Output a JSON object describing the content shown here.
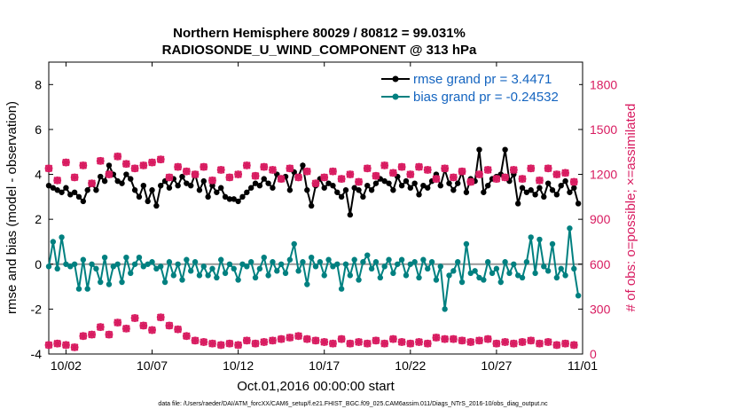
{
  "chart_data": {
    "type": "line",
    "title": "Northern Hemisphere 80029 / 80812 = 99.031%",
    "subtitle": "RADIOSONDE_U_WIND_COMPONENT @ 313 hPa",
    "xlabel": "Oct.01,2016 00:00:00 start",
    "ylabel": "rmse and bias (model - observation)",
    "y2label": "# of obs: o=possible; ×=assimilated",
    "footnote": "data file: /Users/raeder/DAI/ATM_forcXX/CAM6_setup/f.e21.FHIST_BGC.f09_025.CAM6assim.011/Diags_NTrS_2016-10/obs_diag_output.nc",
    "xlim": [
      0,
      31
    ],
    "ylim": [
      -4,
      9
    ],
    "y2lim": [
      0,
      1950
    ],
    "x_ticks": [
      1,
      6,
      11,
      16,
      21,
      26,
      31
    ],
    "x_tick_labels": [
      "10/02",
      "10/07",
      "10/12",
      "10/17",
      "10/22",
      "10/27",
      "11/01"
    ],
    "y_ticks": [
      -4,
      -2,
      0,
      2,
      4,
      6,
      8
    ],
    "y2_ticks": [
      0,
      300,
      600,
      900,
      1200,
      1500,
      1800
    ],
    "series": [
      {
        "name": "rmse grand pr = 3.4471",
        "color": "#000000",
        "axis": "left",
        "x_start": 0.0,
        "x_step": 0.25,
        "values": [
          3.5,
          3.4,
          3.3,
          3.2,
          3.4,
          3.1,
          3.2,
          3.0,
          2.8,
          3.3,
          3.6,
          3.3,
          3.9,
          3.7,
          4.4,
          4.0,
          3.7,
          3.6,
          4.0,
          3.8,
          3.3,
          3.0,
          3.5,
          2.8,
          3.3,
          2.6,
          3.5,
          3.7,
          3.4,
          3.8,
          3.5,
          3.9,
          3.6,
          3.5,
          4.0,
          3.3,
          3.7,
          3.0,
          3.5,
          3.2,
          3.4,
          3.0,
          2.9,
          2.9,
          2.8,
          3.0,
          3.2,
          3.4,
          3.6,
          3.5,
          3.8,
          3.6,
          3.4,
          4.0,
          3.8,
          3.9,
          3.3,
          4.1,
          3.9,
          4.4,
          3.3,
          2.6,
          3.5,
          3.8,
          3.4,
          3.6,
          3.5,
          3.2,
          3.0,
          3.3,
          2.2,
          3.4,
          3.3,
          3.0,
          3.5,
          3.3,
          3.6,
          3.8,
          3.7,
          3.6,
          3.3,
          3.9,
          3.5,
          3.7,
          3.4,
          3.6,
          3.1,
          3.5,
          3.4,
          3.7,
          4.0,
          3.5,
          4.2,
          3.6,
          3.3,
          3.6,
          4.1,
          3.2,
          3.8,
          3.7,
          5.1,
          3.2,
          3.5,
          3.8,
          3.9,
          4.0,
          5.1,
          3.7,
          4.0,
          2.7,
          3.4,
          3.2,
          3.3,
          3.1,
          3.4,
          3.0,
          3.6,
          3.3,
          3.1,
          3.5,
          3.7,
          3.2,
          3.4,
          2.7
        ]
      },
      {
        "name": "bias grand pr = -0.24532",
        "color": "#008080",
        "axis": "left",
        "x_start": 0.0,
        "x_step": 0.25,
        "values": [
          -0.1,
          1.0,
          -0.2,
          1.2,
          0.0,
          -0.1,
          0.0,
          -1.1,
          0.2,
          -1.1,
          0.0,
          -0.2,
          -0.8,
          0.3,
          -0.9,
          -0.1,
          0.0,
          -0.8,
          0.3,
          -0.4,
          0.0,
          0.3,
          -0.1,
          0.0,
          0.1,
          -0.2,
          -0.1,
          -0.8,
          0.1,
          -0.5,
          0.0,
          -0.7,
          0.2,
          -0.3,
          0.1,
          -0.5,
          -0.1,
          -0.5,
          -0.2,
          -0.6,
          0.2,
          -0.4,
          0.0,
          -0.2,
          -0.7,
          0.0,
          -0.1,
          0.1,
          -0.6,
          -0.2,
          0.3,
          -0.5,
          0.1,
          -0.3,
          0.0,
          -0.4,
          0.2,
          0.9,
          -0.3,
          0.1,
          -0.9,
          0.3,
          -0.1,
          0.1,
          -0.5,
          0.2,
          -0.1,
          0.0,
          -1.1,
          0.0,
          -0.5,
          0.2,
          -0.7,
          0.1,
          0.4,
          -0.2,
          0.1,
          -0.6,
          -0.1,
          0.2,
          -0.4,
          0.0,
          0.2,
          -0.5,
          0.0,
          0.1,
          -0.6,
          0.2,
          -0.2,
          0.1,
          -0.7,
          -0.1,
          -2.0,
          -0.5,
          -0.3,
          0.1,
          -0.8,
          0.9,
          -0.4,
          -0.3,
          -0.6,
          -0.7,
          0.1,
          -0.4,
          -0.2,
          -0.8,
          0.1,
          -0.4,
          0.0,
          -0.5,
          -0.6,
          0.1,
          1.2,
          -0.4,
          1.1,
          -0.1,
          -0.3,
          0.9,
          -0.6,
          -0.2,
          -0.5,
          1.6,
          -0.2,
          -1.4
        ]
      },
      {
        "name": "obs possible",
        "color": "#d81b60",
        "axis": "right",
        "marker": "circle",
        "x_start": 0.0,
        "x_step": 0.5,
        "values": [
          1240,
          1160,
          1280,
          1180,
          1260,
          1140,
          1290,
          1200,
          1320,
          1270,
          1240,
          1260,
          1280,
          1300,
          1180,
          1250,
          1220,
          1200,
          1250,
          1160,
          1230,
          1180,
          1200,
          1260,
          1190,
          1250,
          1230,
          1170,
          1240,
          1180,
          1220,
          1140,
          1180,
          1220,
          1170,
          1200,
          1150,
          1240,
          1190,
          1260,
          1210,
          1250,
          1200,
          1250,
          1230,
          1170,
          1240,
          1180,
          1220,
          1150,
          1200,
          1230,
          1170,
          1180,
          1230,
          1170,
          1240,
          1160,
          1240,
          1200,
          1210,
          1150
        ]
      },
      {
        "name": "obs assimilated",
        "color": "#d81b60",
        "axis": "right",
        "marker": "cross",
        "x_start": 0.0,
        "x_step": 0.5,
        "values": [
          1240,
          1160,
          1280,
          1180,
          1260,
          1140,
          1290,
          1200,
          1320,
          1270,
          1240,
          1260,
          1280,
          1300,
          1180,
          1250,
          1220,
          1200,
          1250,
          1160,
          1230,
          1180,
          1200,
          1260,
          1190,
          1250,
          1230,
          1170,
          1240,
          1180,
          1220,
          1140,
          1180,
          1220,
          1170,
          1200,
          1150,
          1240,
          1190,
          1260,
          1210,
          1250,
          1200,
          1250,
          1230,
          1170,
          1240,
          1180,
          1220,
          1150,
          1200,
          1230,
          1170,
          1180,
          1230,
          1170,
          1240,
          1160,
          1240,
          1200,
          1210,
          1150
        ]
      },
      {
        "name": "obs possible (lower)",
        "color": "#d81b60",
        "axis": "right",
        "marker": "circle",
        "x_start": 0.0,
        "x_step": 0.5,
        "values": [
          60,
          70,
          60,
          45,
          120,
          130,
          180,
          130,
          210,
          170,
          240,
          190,
          160,
          245,
          190,
          165,
          120,
          90,
          80,
          70,
          60,
          70,
          60,
          90,
          70,
          80,
          90,
          100,
          110,
          120,
          100,
          90,
          80,
          70,
          100,
          70,
          80,
          70,
          90,
          70,
          100,
          80,
          70,
          80,
          70,
          110,
          100,
          100,
          90,
          80,
          90,
          100,
          70,
          80,
          70,
          80,
          90,
          70,
          80,
          60,
          70,
          60
        ]
      },
      {
        "name": "obs assimilated (lower)",
        "color": "#d81b60",
        "axis": "right",
        "marker": "cross",
        "x_start": 0.0,
        "x_step": 0.5,
        "values": [
          60,
          70,
          60,
          45,
          120,
          130,
          180,
          130,
          210,
          170,
          240,
          190,
          160,
          245,
          190,
          165,
          120,
          90,
          80,
          70,
          60,
          70,
          60,
          90,
          70,
          80,
          90,
          100,
          110,
          120,
          100,
          90,
          80,
          70,
          100,
          70,
          80,
          70,
          90,
          70,
          100,
          80,
          70,
          80,
          70,
          110,
          100,
          100,
          90,
          80,
          90,
          100,
          70,
          80,
          70,
          80,
          90,
          70,
          80,
          60,
          70,
          60
        ]
      }
    ],
    "legend": [
      "rmse grand pr = 3.4471",
      "bias grand pr = -0.24532"
    ],
    "legend_position": "top-right",
    "zero_line": 0
  }
}
